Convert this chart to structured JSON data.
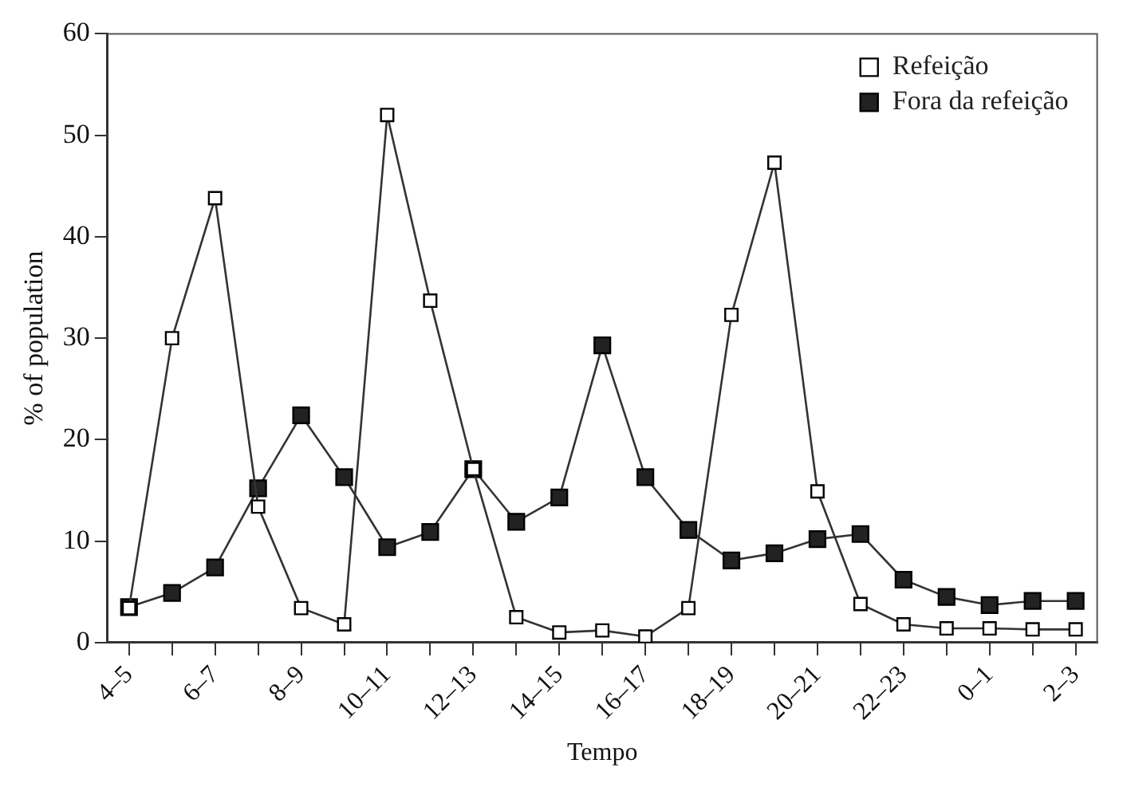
{
  "chart_data": {
    "type": "line",
    "xlabel": "Tempo",
    "ylabel": "% of population",
    "categories": [
      "4–5",
      null,
      "6–7",
      null,
      "8–9",
      null,
      "10–11",
      null,
      "12–13",
      null,
      "14–15",
      null,
      "16–17",
      null,
      "18–19",
      null,
      "20–21",
      null,
      "22–23",
      null,
      "0–1",
      null,
      "2–3"
    ],
    "series": [
      {
        "name": "Refeição",
        "color": "#ffffff",
        "values": [
          3.4,
          30,
          43.8,
          13.4,
          3.4,
          1.8,
          52,
          33.7,
          17.1,
          2.5,
          1.0,
          1.2,
          0.6,
          3.4,
          32.3,
          47.3,
          14.9,
          3.8,
          1.8,
          1.4,
          1.4,
          1.3,
          1.3
        ]
      },
      {
        "name": "Fora da refeição",
        "color": "#222222",
        "values": [
          3.5,
          4.9,
          7.4,
          15.2,
          22.4,
          16.3,
          9.4,
          10.9,
          17.1,
          11.9,
          14.3,
          29.3,
          16.3,
          11.1,
          8.1,
          8.8,
          10.2,
          10.7,
          6.2,
          4.5,
          3.7,
          4.1,
          4.1
        ]
      }
    ],
    "ylim": [
      0,
      60
    ],
    "yticks": [
      0,
      10,
      20,
      30,
      40,
      50,
      60
    ],
    "grid": false,
    "legend": "top right",
    "marker": "square",
    "line_style": "solid"
  }
}
